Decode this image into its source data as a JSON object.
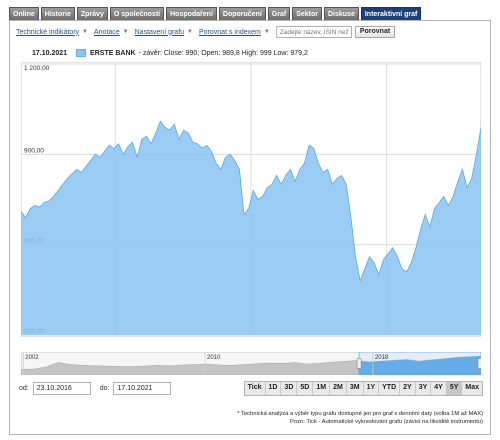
{
  "tabs": [
    {
      "label": "Online"
    },
    {
      "label": "Historie"
    },
    {
      "label": "Zprávy"
    },
    {
      "label": "O společnosti"
    },
    {
      "label": "Hospodaření"
    },
    {
      "label": "Doporučení"
    },
    {
      "label": "Graf"
    },
    {
      "label": "Sektor"
    },
    {
      "label": "Diskuse"
    },
    {
      "label": "Interaktivní graf",
      "active": true
    }
  ],
  "toolbar": {
    "indicators": "Technické indikátory",
    "indicators_caret": "▼",
    "studies": "Anotace",
    "studies_caret": "▼",
    "settings": "Nastavení grafu",
    "settings_caret": "▼",
    "compare_index": "Porovnat s indexem",
    "compare_index_caret": "▼",
    "isin_placeholder": "Zadejte název, ISIN než",
    "compare_button": "Porovnat"
  },
  "legend": {
    "date": "17.10.2021",
    "name": "ERSTE BANK",
    "values": "- závěr: Close: 990; Open: 989,8 High: 999 Low: 979,2"
  },
  "range": {
    "from_label": "od:",
    "from_value": "23.10.2016",
    "to_label": "do:",
    "to_value": "17.10.2021",
    "periods": [
      {
        "label": "Tick"
      },
      {
        "label": "1D"
      },
      {
        "label": "3D"
      },
      {
        "label": "5D"
      },
      {
        "label": "1M"
      },
      {
        "label": "2M"
      },
      {
        "label": "3M"
      },
      {
        "label": "1Y"
      },
      {
        "label": "YTD"
      },
      {
        "label": "2Y"
      },
      {
        "label": "3Y"
      },
      {
        "label": "4Y"
      },
      {
        "label": "5Y",
        "active": true
      },
      {
        "label": "Max"
      }
    ]
  },
  "notes": {
    "line1": "* Technická analýza a výběr typu grafu dostupné jen pro graf s denními daty (volba 1M až MAX)",
    "line2": "Pozn: Tick - Automatické vykreslování grafu (závisí na likviditě instrumentu)"
  },
  "colors": {
    "series_fill": "#8ac4f2",
    "series_line": "#5aa6e6",
    "navigator_fill": "#c4c4c4",
    "navigator_selected": "#5aa6e6",
    "active_tab": "#1d3f7a"
  },
  "chart_data": {
    "type": "area",
    "series": [
      {
        "name": "ERSTE BANK",
        "values": [
          710,
          690,
          720,
          730,
          725,
          740,
          745,
          760,
          780,
          800,
          820,
          835,
          850,
          840,
          860,
          880,
          900,
          890,
          910,
          930,
          920,
          935,
          900,
          925,
          940,
          890,
          950,
          960,
          935,
          970,
          1010,
          990,
          980,
          1000,
          950,
          980,
          970,
          940,
          935,
          920,
          930,
          910,
          870,
          850,
          890,
          900,
          880,
          850,
          700,
          720,
          780,
          750,
          760,
          790,
          800,
          830,
          800,
          830,
          850,
          810,
          850,
          870,
          930,
          920,
          870,
          840,
          850,
          800,
          820,
          830,
          800,
          690,
          560,
          480,
          520,
          560,
          540,
          500,
          550,
          570,
          590,
          560,
          520,
          510,
          540,
          590,
          650,
          700,
          660,
          720,
          740,
          760,
          730,
          760,
          810,
          850,
          790,
          820,
          900,
          990
        ]
      }
    ],
    "ylim": [
      300,
      1200
    ],
    "yticks": [
      {
        "value": 300,
        "label": "300,00"
      },
      {
        "value": 600,
        "label": "600,00"
      },
      {
        "value": 900,
        "label": "900,00"
      },
      {
        "value": 1200,
        "label": "1 200,00"
      }
    ],
    "navigator": {
      "labels": [
        "2002",
        "2010",
        "2018"
      ],
      "values": [
        28,
        30,
        40,
        62,
        52,
        48,
        46,
        44,
        42,
        42,
        45,
        48,
        46,
        50,
        52,
        55,
        50,
        48,
        52,
        56,
        60,
        58,
        62,
        55,
        58,
        64,
        68,
        72,
        66,
        70,
        74,
        78,
        70,
        76,
        82,
        88,
        92,
        95
      ]
    },
    "grid": true,
    "legend": "top-left"
  }
}
